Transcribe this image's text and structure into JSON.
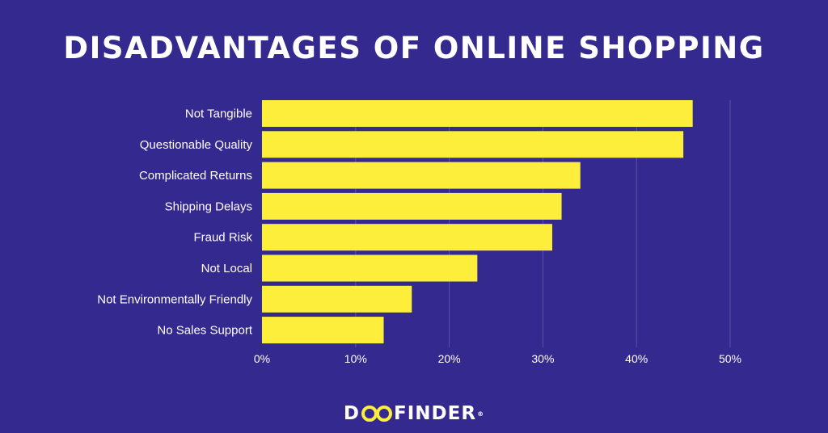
{
  "title": "DISADVANTAGES OF ONLINE SHOPPING",
  "logo": {
    "part1": "D",
    "part2": "FINDER",
    "mark": "®"
  },
  "colors": {
    "background": "#33298f",
    "bar": "#fcee3a",
    "gridline": "#5a52a8",
    "text": "#ffffff"
  },
  "chart_data": {
    "type": "bar",
    "orientation": "horizontal",
    "categories": [
      "Not Tangible",
      "Questionable Quality",
      "Complicated Returns",
      "Shipping Delays",
      "Fraud Risk",
      "Not Local",
      "Not Environmentally Friendly",
      "No Sales Support"
    ],
    "values": [
      46,
      45,
      34,
      32,
      31,
      23,
      16,
      13
    ],
    "xlim": [
      0,
      50
    ],
    "ticks": [
      0,
      10,
      20,
      30,
      40,
      50
    ],
    "tick_labels": [
      "0%",
      "10%",
      "20%",
      "30%",
      "40%",
      "50%"
    ],
    "grid": true
  }
}
